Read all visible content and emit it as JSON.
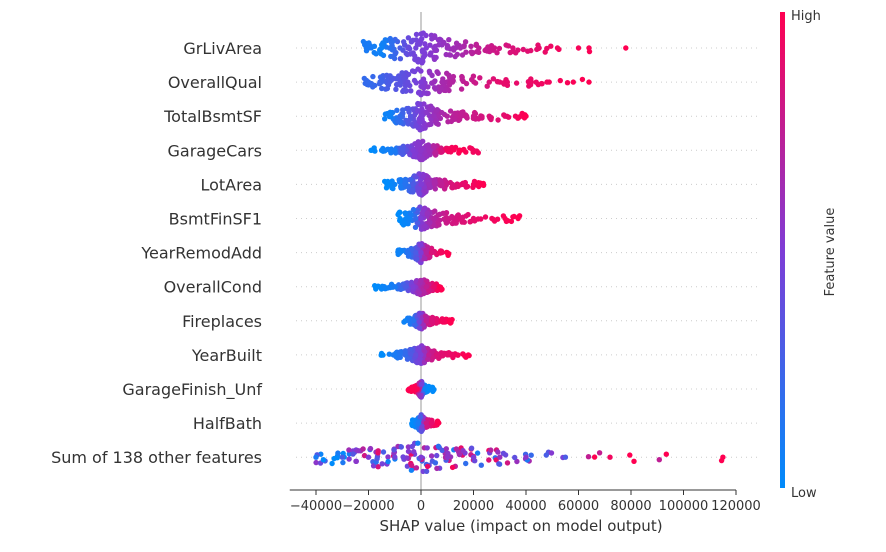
{
  "chart_data": {
    "type": "scatter",
    "subtype": "shap-beeswarm",
    "title": "",
    "xlabel": "SHAP value (impact on model output)",
    "xlim": [
      -50000,
      120000
    ],
    "xticks": [
      -40000,
      -20000,
      0,
      20000,
      40000,
      60000,
      80000,
      100000,
      120000
    ],
    "xtick_labels": [
      "−40000",
      "−20000",
      "0",
      "20000",
      "40000",
      "60000",
      "80000",
      "100000",
      "120000"
    ],
    "colorbar": {
      "label": "Feature value",
      "high_label": "High",
      "low_label": "Low",
      "low_color": "#008bfb",
      "high_color": "#ff0051"
    },
    "features": [
      {
        "name": "GrLivArea",
        "min": -22000,
        "max": 78000,
        "low_side": "neg",
        "spread": 16,
        "samples": [
          [
            -20000,
            0.1
          ],
          [
            -15000,
            0.05
          ],
          [
            -12000,
            0.15
          ],
          [
            -8000,
            0.3
          ],
          [
            -5000,
            0.4
          ],
          [
            -2000,
            0.45
          ],
          [
            2000,
            0.5
          ],
          [
            5000,
            0.55
          ],
          [
            10000,
            0.6
          ],
          [
            15000,
            0.65
          ],
          [
            22000,
            0.75
          ],
          [
            28000,
            0.8
          ],
          [
            35000,
            0.85
          ],
          [
            45000,
            0.9
          ],
          [
            52000,
            0.95
          ],
          [
            60000,
            0.97
          ],
          [
            64000,
            0.98
          ],
          [
            78000,
            1.0
          ]
        ]
      },
      {
        "name": "OverallQual",
        "min": -22000,
        "max": 65000,
        "low_side": "neg",
        "spread": 14,
        "samples": [
          [
            -20000,
            0.2
          ],
          [
            -15000,
            0.25
          ],
          [
            -12000,
            0.3
          ],
          [
            -8000,
            0.35
          ],
          [
            -5000,
            0.4
          ],
          [
            0,
            0.5
          ],
          [
            5000,
            0.6
          ],
          [
            8000,
            0.65
          ],
          [
            12000,
            0.7
          ],
          [
            26000,
            0.85
          ],
          [
            30000,
            0.9
          ],
          [
            42000,
            0.92
          ],
          [
            48000,
            0.95
          ],
          [
            58000,
            0.98
          ],
          [
            64000,
            1.0
          ]
        ]
      },
      {
        "name": "TotalBsmtSF",
        "min": -14000,
        "max": 40000,
        "low_side": "neg",
        "spread": 14,
        "samples": [
          [
            -12000,
            0.05
          ],
          [
            -8000,
            0.2
          ],
          [
            -4000,
            0.35
          ],
          [
            0,
            0.5
          ],
          [
            5000,
            0.6
          ],
          [
            10000,
            0.7
          ],
          [
            15000,
            0.75
          ],
          [
            20000,
            0.8
          ],
          [
            26000,
            0.85
          ],
          [
            32000,
            0.9
          ],
          [
            36000,
            0.95
          ],
          [
            40000,
            1.0
          ]
        ]
      },
      {
        "name": "GarageCars",
        "min": -20000,
        "max": 22000,
        "low_side": "neg",
        "spread": 10,
        "samples": [
          [
            -19000,
            0.0
          ],
          [
            -15000,
            0.05
          ],
          [
            -10000,
            0.1
          ],
          [
            -7000,
            0.3
          ],
          [
            -3000,
            0.5
          ],
          [
            0,
            0.55
          ],
          [
            3000,
            0.6
          ],
          [
            10000,
            0.95
          ],
          [
            15000,
            1.0
          ],
          [
            20000,
            0.95
          ]
        ]
      },
      {
        "name": "LotArea",
        "min": -14000,
        "max": 24000,
        "low_side": "neg",
        "spread": 12,
        "samples": [
          [
            -13000,
            0.0
          ],
          [
            -10000,
            0.05
          ],
          [
            -6000,
            0.15
          ],
          [
            -3000,
            0.3
          ],
          [
            0,
            0.5
          ],
          [
            3000,
            0.6
          ],
          [
            8000,
            0.75
          ],
          [
            12000,
            0.85
          ],
          [
            16000,
            0.9
          ],
          [
            20000,
            0.95
          ],
          [
            23000,
            1.0
          ]
        ]
      },
      {
        "name": "BsmtFinSF1",
        "min": -9000,
        "max": 38000,
        "low_side": "neg",
        "spread": 12,
        "samples": [
          [
            -8000,
            0.0
          ],
          [
            -5000,
            0.05
          ],
          [
            -2000,
            0.2
          ],
          [
            0,
            0.5
          ],
          [
            5000,
            0.7
          ],
          [
            10000,
            0.8
          ],
          [
            15000,
            0.85
          ],
          [
            20000,
            0.9
          ],
          [
            27000,
            0.95
          ],
          [
            32000,
            0.98
          ],
          [
            37000,
            1.0
          ]
        ]
      },
      {
        "name": "YearRemodAdd",
        "min": -9000,
        "max": 11000,
        "low_side": "neg",
        "spread": 11,
        "samples": [
          [
            -8000,
            0.05
          ],
          [
            -5000,
            0.15
          ],
          [
            -2000,
            0.3
          ],
          [
            0,
            0.5
          ],
          [
            2000,
            0.7
          ],
          [
            4000,
            0.85
          ],
          [
            8000,
            0.95
          ],
          [
            10000,
            1.0
          ]
        ]
      },
      {
        "name": "OverallCond",
        "min": -18000,
        "max": 8000,
        "low_side": "neg",
        "spread": 9,
        "samples": [
          [
            -17000,
            0.0
          ],
          [
            -14000,
            0.05
          ],
          [
            -10000,
            0.1
          ],
          [
            -6000,
            0.3
          ],
          [
            -3000,
            0.5
          ],
          [
            2000,
            0.75
          ],
          [
            5000,
            0.9
          ],
          [
            7000,
            1.0
          ]
        ]
      },
      {
        "name": "Fireplaces",
        "min": -6500,
        "max": 12000,
        "low_side": "neg",
        "spread": 9,
        "samples": [
          [
            -6000,
            0.05
          ],
          [
            -4500,
            0.1
          ],
          [
            -3000,
            0.15
          ],
          [
            2000,
            0.75
          ],
          [
            4000,
            0.85
          ],
          [
            8000,
            0.95
          ],
          [
            11000,
            1.0
          ]
        ]
      },
      {
        "name": "YearBuilt",
        "min": -16000,
        "max": 19000,
        "low_side": "neg",
        "spread": 10,
        "samples": [
          [
            -15000,
            0.0
          ],
          [
            -10000,
            0.1
          ],
          [
            -6000,
            0.2
          ],
          [
            -2000,
            0.4
          ],
          [
            0,
            0.5
          ],
          [
            3000,
            0.75
          ],
          [
            6000,
            0.85
          ],
          [
            10000,
            0.9
          ],
          [
            14000,
            0.95
          ],
          [
            18000,
            1.0
          ]
        ]
      },
      {
        "name": "GarageFinish_Unf",
        "min": -5000,
        "max": 5000,
        "low_side": "pos",
        "spread": 9,
        "samples": [
          [
            -4500,
            1.0
          ],
          [
            -3000,
            1.0
          ],
          [
            -1500,
            0.98
          ],
          [
            1500,
            0.05
          ],
          [
            3000,
            0.0
          ],
          [
            4500,
            0.0
          ]
        ]
      },
      {
        "name": "HalfBath",
        "min": -3500,
        "max": 7000,
        "low_side": "neg",
        "spread": 9,
        "samples": [
          [
            -3000,
            0.0
          ],
          [
            -2000,
            0.05
          ],
          [
            -1000,
            0.1
          ],
          [
            2000,
            0.8
          ],
          [
            4000,
            0.9
          ],
          [
            6500,
            1.0
          ]
        ]
      },
      {
        "name": "Sum of 138 other features",
        "min": -42000,
        "max": 115000,
        "low_side": "mix",
        "spread": 15,
        "samples": [
          [
            -40000,
            0.1
          ],
          [
            -30000,
            0.3
          ],
          [
            -20000,
            0.5
          ],
          [
            -10000,
            0.45
          ],
          [
            0,
            0.5
          ],
          [
            10000,
            0.55
          ],
          [
            20000,
            0.5
          ],
          [
            30000,
            0.6
          ],
          [
            40000,
            0.55
          ],
          [
            55000,
            0.3
          ],
          [
            72000,
            0.95
          ],
          [
            115000,
            1.0
          ]
        ]
      }
    ]
  }
}
